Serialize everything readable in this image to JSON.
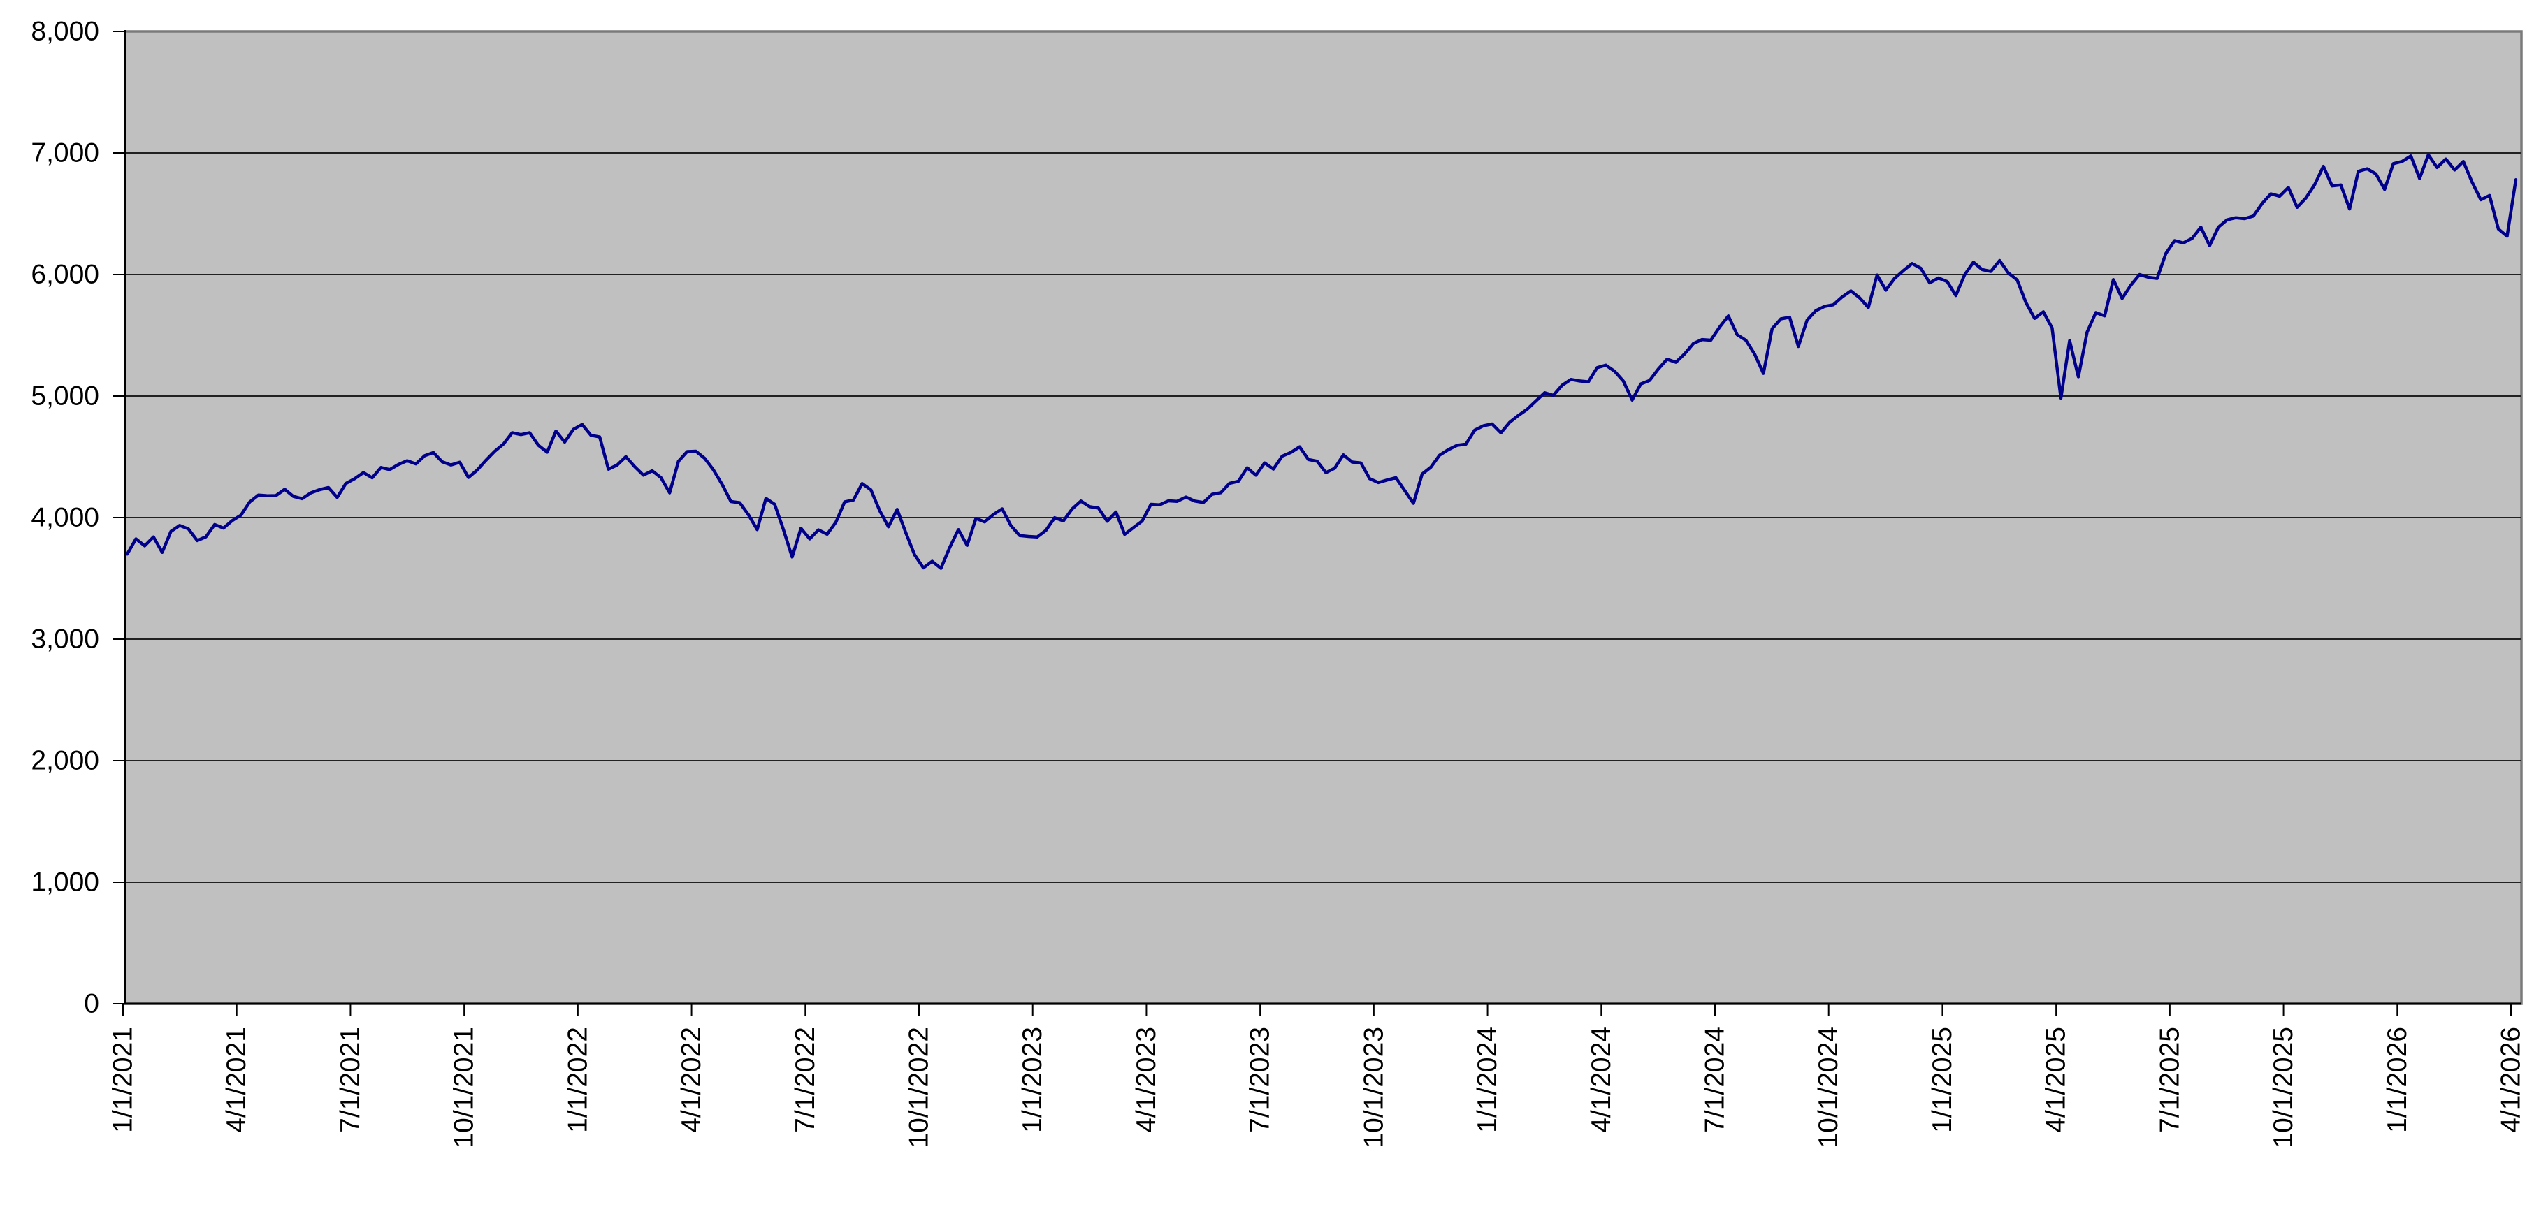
{
  "chart_data": {
    "type": "line",
    "title": "",
    "xlabel": "",
    "ylabel": "",
    "legend": "none",
    "grid": true,
    "ylim": [
      0,
      8000
    ],
    "y_tick_interval": 1000,
    "y_tick_labels": [
      "0",
      "1,000",
      "2,000",
      "3,000",
      "4,000",
      "5,000",
      "6,000",
      "7,000",
      "8,000"
    ],
    "x_tick_labels": [
      "1/1/2021",
      "4/1/2021",
      "7/1/2021",
      "10/1/2021",
      "1/1/2022",
      "4/1/2022",
      "7/1/2022",
      "10/1/2022",
      "1/1/2023",
      "4/1/2023",
      "7/1/2023",
      "10/1/2023",
      "1/1/2024",
      "4/1/2024",
      "7/1/2024",
      "10/1/2024",
      "1/1/2025",
      "4/1/2025",
      "7/1/2025",
      "10/1/2025",
      "1/1/2026",
      "4/1/2026"
    ],
    "x_start": "1/1/2021",
    "x_end": "4/1/2026",
    "sampling": "weekly (13 points per quarter, read from daily-close line)",
    "colors": {
      "line": "#00008B",
      "plot_background": "#C0C0C0",
      "plot_border": "#7A7A7A",
      "gridline": "#212121",
      "axis": "#000000",
      "page_background": "#FFFFFF",
      "label_text": "#000000"
    },
    "series": [
      {
        "name": "",
        "values": [
          3700,
          3825,
          3768,
          3841,
          3714,
          3887,
          3935,
          3907,
          3811,
          3842,
          3943,
          3913,
          3975,
          4020,
          4129,
          4185,
          4180,
          4181,
          4233,
          4174,
          4156,
          4204,
          4230,
          4247,
          4166,
          4281,
          4320,
          4370,
          4327,
          4412,
          4395,
          4437,
          4468,
          4442,
          4509,
          4535,
          4459,
          4433,
          4455,
          4330,
          4391,
          4471,
          4545,
          4605,
          4698,
          4683,
          4698,
          4595,
          4538,
          4712,
          4621,
          4726,
          4766,
          4677,
          4663,
          4398,
          4432,
          4501,
          4419,
          4349,
          4385,
          4329,
          4204,
          4463,
          4543,
          4546,
          4488,
          4393,
          4272,
          4132,
          4123,
          4024,
          3901,
          4158,
          4109,
          3901,
          3675,
          3912,
          3825,
          3899,
          3863,
          3962,
          4130,
          4145,
          4280,
          4228,
          4058,
          3924,
          4067,
          3873,
          3693,
          3586,
          3640,
          3583,
          3753,
          3901,
          3771,
          3993,
          3965,
          4026,
          4072,
          3934,
          3852,
          3845,
          3840,
          3895,
          3999,
          3973,
          4071,
          4136,
          4090,
          4079,
          3970,
          4046,
          3862,
          3917,
          3971,
          4109,
          4105,
          4138,
          4134,
          4169,
          4136,
          4124,
          4192,
          4205,
          4282,
          4299,
          4410,
          4348,
          4450,
          4399,
          4505,
          4536,
          4582,
          4478,
          4464,
          4370,
          4406,
          4516,
          4457,
          4450,
          4320,
          4288,
          4309,
          4328,
          4224,
          4117,
          4358,
          4415,
          4514,
          4559,
          4595,
          4604,
          4719,
          4755,
          4770,
          4697,
          4784,
          4840,
          4891,
          4959,
          5027,
          5006,
          5089,
          5137,
          5124,
          5117,
          5234,
          5254,
          5204,
          5123,
          4967,
          5100,
          5128,
          5223,
          5303,
          5278,
          5347,
          5432,
          5465,
          5460,
          5567,
          5659,
          5505,
          5459,
          5346,
          5186,
          5554,
          5635,
          5648,
          5408,
          5626,
          5703,
          5738,
          5751,
          5815,
          5865,
          5808,
          5729,
          5996,
          5871,
          5969,
          6032,
          6090,
          6051,
          5931,
          5971,
          5942,
          5827,
          5997,
          6101,
          6041,
          6026,
          6115,
          6013,
          5955,
          5770,
          5639,
          5693,
          5560,
          4983,
          5456,
          5158,
          5525,
          5687,
          5660,
          5958,
          5803,
          5912,
          6000,
          5977,
          5968,
          6173,
          6279,
          6260,
          6297,
          6389,
          6238,
          6389,
          6450,
          6467,
          6460,
          6481,
          6584,
          6664,
          6644,
          6716,
          6553,
          6629,
          6738,
          6890,
          6729,
          6737,
          6539,
          6849,
          6870,
          6828,
          6700,
          6912,
          6930,
          6975,
          6790,
          6985,
          6880,
          6950,
          6860,
          6930,
          6760,
          6615,
          6650,
          6375,
          6315,
          6780
        ]
      }
    ]
  }
}
